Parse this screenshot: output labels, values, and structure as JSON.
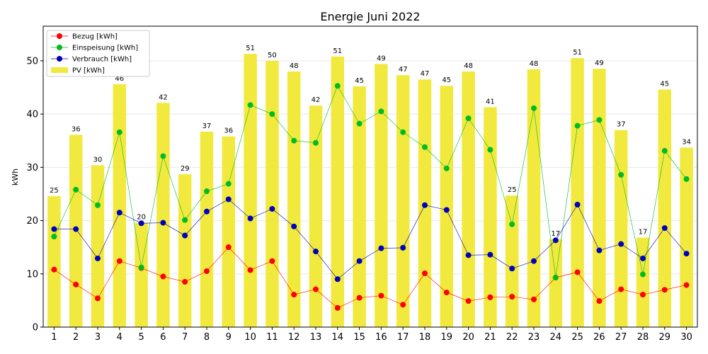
{
  "chart_data": {
    "type": "bar",
    "title": "Energie Juni 2022",
    "xlabel": "",
    "ylabel": "kWh",
    "ylim": [
      0,
      56.5
    ],
    "xlim": [
      0.5,
      30.5
    ],
    "yticks": [
      0,
      10,
      20,
      30,
      40,
      50
    ],
    "grid": "horizontal, light",
    "legend_position": "top-left",
    "categories": [
      "1",
      "2",
      "3",
      "4",
      "5",
      "6",
      "7",
      "8",
      "9",
      "10",
      "11",
      "12",
      "13",
      "14",
      "15",
      "16",
      "17",
      "18",
      "19",
      "20",
      "21",
      "22",
      "23",
      "24",
      "25",
      "26",
      "27",
      "28",
      "29",
      "30"
    ],
    "bars": {
      "name": "PV [kWh]",
      "color": "#f2e93f",
      "values": [
        24.6,
        36.1,
        30.4,
        45.6,
        19.6,
        42.1,
        28.7,
        36.7,
        35.8,
        51.3,
        50.0,
        48.0,
        41.6,
        50.8,
        45.2,
        49.4,
        47.3,
        46.5,
        45.3,
        48.0,
        41.3,
        24.7,
        48.4,
        16.5,
        50.5,
        48.5,
        37.0,
        16.8,
        44.6,
        33.7
      ],
      "labels": [
        "25",
        "36",
        "30",
        "46",
        "20",
        "42",
        "29",
        "37",
        "36",
        "51",
        "50",
        "48",
        "42",
        "51",
        "45",
        "49",
        "47",
        "47",
        "45",
        "48",
        "41",
        "25",
        "48",
        "17",
        "51",
        "49",
        "37",
        "17",
        "45",
        "34"
      ]
    },
    "series": [
      {
        "name": "Bezug [kWh]",
        "color": "#ff0000",
        "values": [
          10.8,
          8.0,
          5.4,
          12.4,
          11.1,
          9.5,
          8.5,
          10.5,
          15.0,
          10.7,
          12.4,
          6.1,
          7.1,
          3.6,
          5.5,
          5.9,
          4.2,
          10.1,
          6.5,
          4.9,
          5.6,
          5.7,
          5.2,
          9.3,
          10.3,
          4.9,
          7.1,
          6.1,
          7.0,
          7.9
        ]
      },
      {
        "name": "Einspeisung [kWh]",
        "color": "#00bb22",
        "values": [
          17.0,
          25.8,
          22.9,
          36.6,
          11.2,
          32.1,
          20.1,
          25.5,
          26.9,
          41.7,
          40.0,
          35.0,
          34.6,
          45.3,
          38.2,
          40.5,
          36.6,
          33.8,
          29.8,
          39.2,
          33.3,
          19.3,
          41.1,
          9.3,
          37.8,
          38.9,
          28.6,
          9.9,
          33.1,
          27.8
        ]
      },
      {
        "name": "Verbrauch [kWh]",
        "color": "#0000bb",
        "values": [
          18.4,
          18.4,
          12.9,
          21.5,
          19.5,
          19.6,
          17.2,
          21.7,
          24.0,
          20.4,
          22.2,
          18.9,
          14.2,
          9.0,
          12.4,
          14.8,
          14.9,
          22.9,
          22.0,
          13.5,
          13.6,
          11.0,
          12.4,
          16.3,
          23.0,
          14.4,
          15.6,
          12.9,
          18.6,
          13.8
        ]
      }
    ]
  }
}
